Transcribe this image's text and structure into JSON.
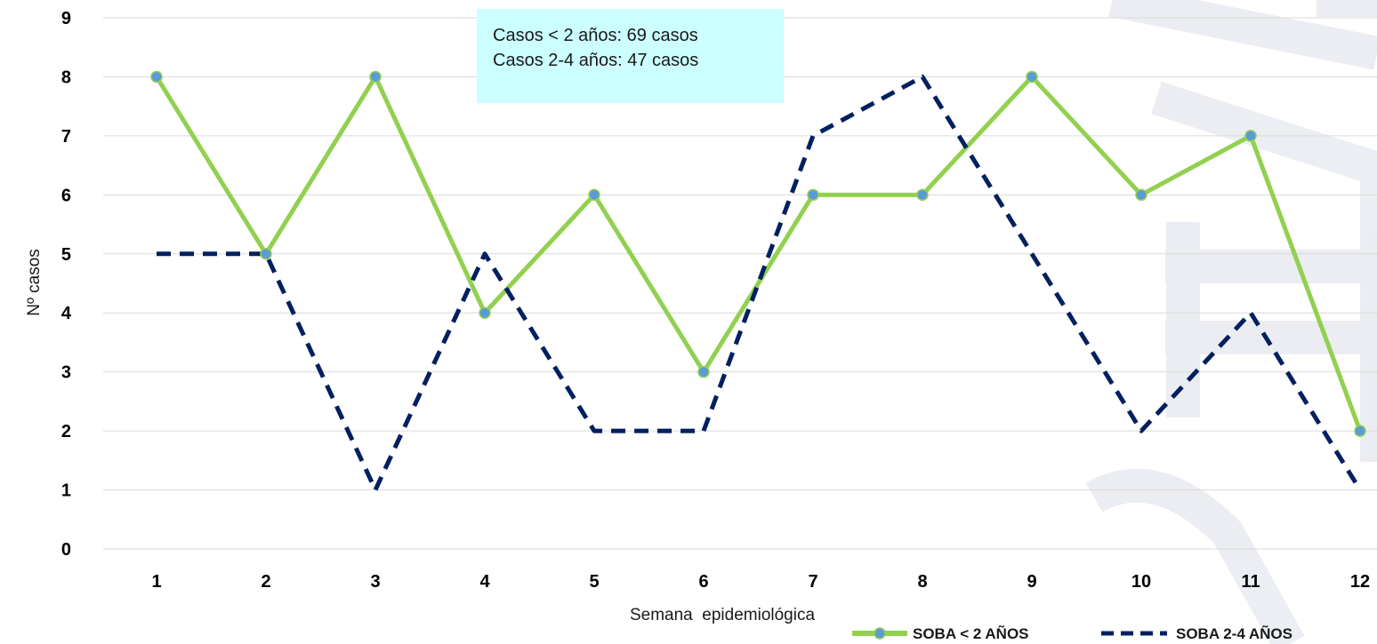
{
  "chart_data": {
    "type": "line",
    "xlabel": "Semana  epidemiológica",
    "ylabel": "Nº casos",
    "categories": [
      "1",
      "2",
      "3",
      "4",
      "5",
      "6",
      "7",
      "8",
      "9",
      "10",
      "11",
      "12"
    ],
    "y_ticks": [
      "0",
      "1",
      "2",
      "3",
      "4",
      "5",
      "6",
      "7",
      "8",
      "9"
    ],
    "ylim": [
      0,
      9
    ],
    "grid": true,
    "legend_position": "bottom-right",
    "series": [
      {
        "name": "SOBA < 2 AÑOS",
        "values": [
          8,
          5,
          8,
          4,
          6,
          3,
          6,
          6,
          8,
          6,
          7,
          2
        ],
        "color": "#92d050",
        "marker_color": "#5b9bd5",
        "style": "solid-markers"
      },
      {
        "name": "SOBA 2-4 AÑOS",
        "values": [
          5,
          5,
          1,
          5,
          2,
          2,
          7,
          8,
          5,
          2,
          4,
          1
        ],
        "color": "#002060",
        "style": "dashed"
      }
    ],
    "annotation": {
      "lines": [
        "Casos < 2 años: 69 casos",
        "Casos 2-4 años: 47 casos"
      ],
      "background": "#ccffff"
    }
  }
}
